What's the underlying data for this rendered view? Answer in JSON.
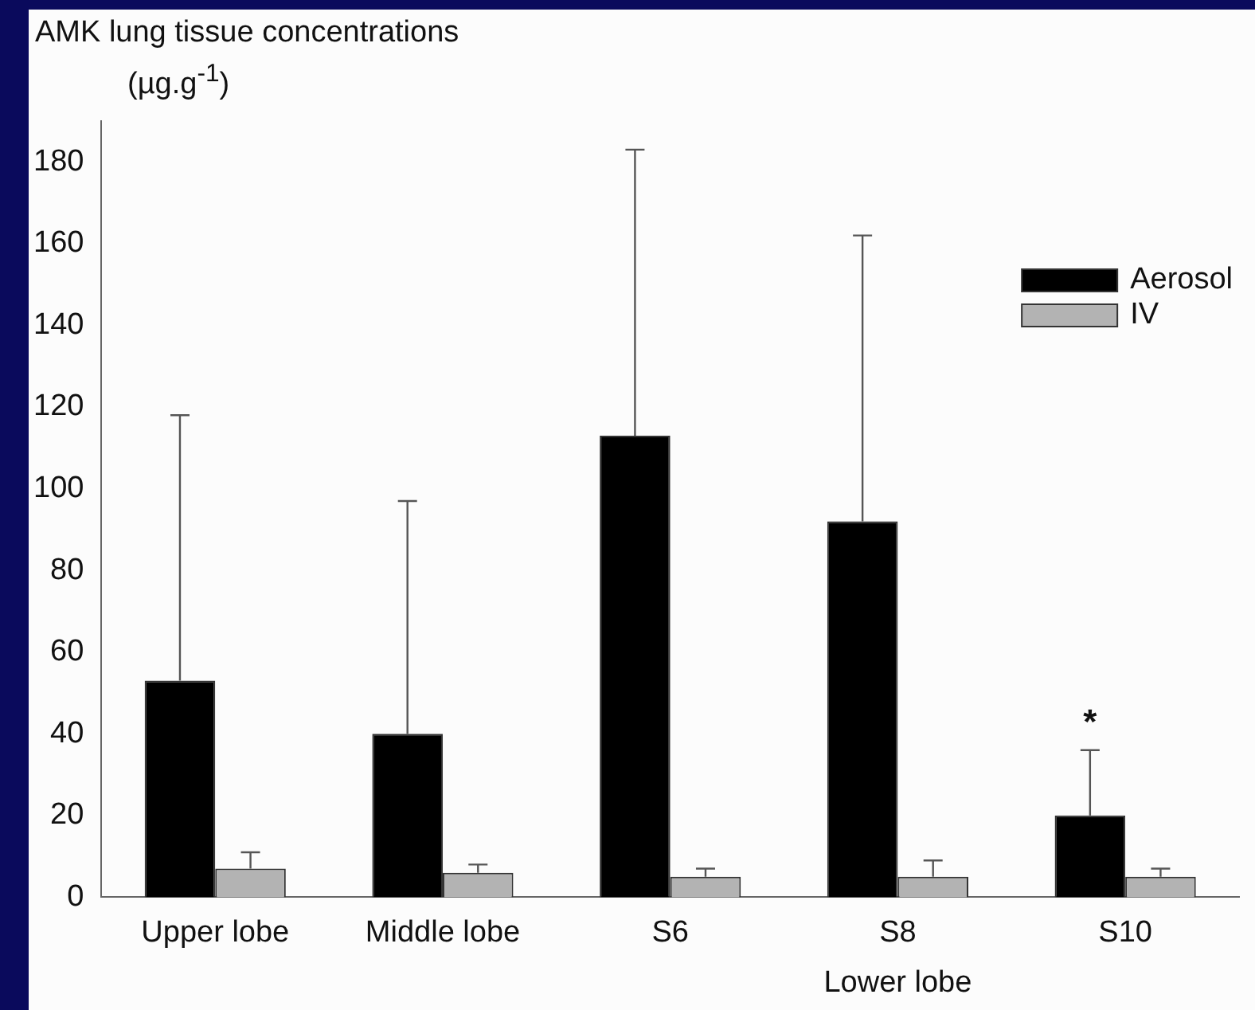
{
  "chart_data": {
    "type": "bar",
    "title": "AMK lung tissue concentrations",
    "ylabel": "(µg.g$^{-1}$)",
    "categories": [
      "Upper lobe",
      "Middle lobe",
      "S6",
      "S8",
      "S10"
    ],
    "series": [
      {
        "name": "Aerosol",
        "color": "#000000",
        "values": [
          53,
          40,
          113,
          92,
          20
        ],
        "errors": [
          [
            53,
            118
          ],
          [
            40,
            97
          ],
          [
            113,
            183
          ],
          [
            92,
            162
          ],
          [
            20,
            36
          ]
        ]
      },
      {
        "name": "IV",
        "color": "#b3b3b3",
        "values": [
          7,
          6,
          5,
          5,
          5
        ],
        "errors": [
          [
            7,
            11
          ],
          [
            6,
            8
          ],
          [
            5,
            7
          ],
          [
            5,
            9
          ],
          [
            5,
            7
          ]
        ]
      }
    ],
    "ylim": [
      0,
      190
    ],
    "yticks": [
      0,
      20,
      40,
      60,
      80,
      100,
      120,
      140,
      160,
      180
    ],
    "grid": false,
    "legend": "top right",
    "annotations": [
      "Lower lobe",
      "*"
    ]
  }
}
